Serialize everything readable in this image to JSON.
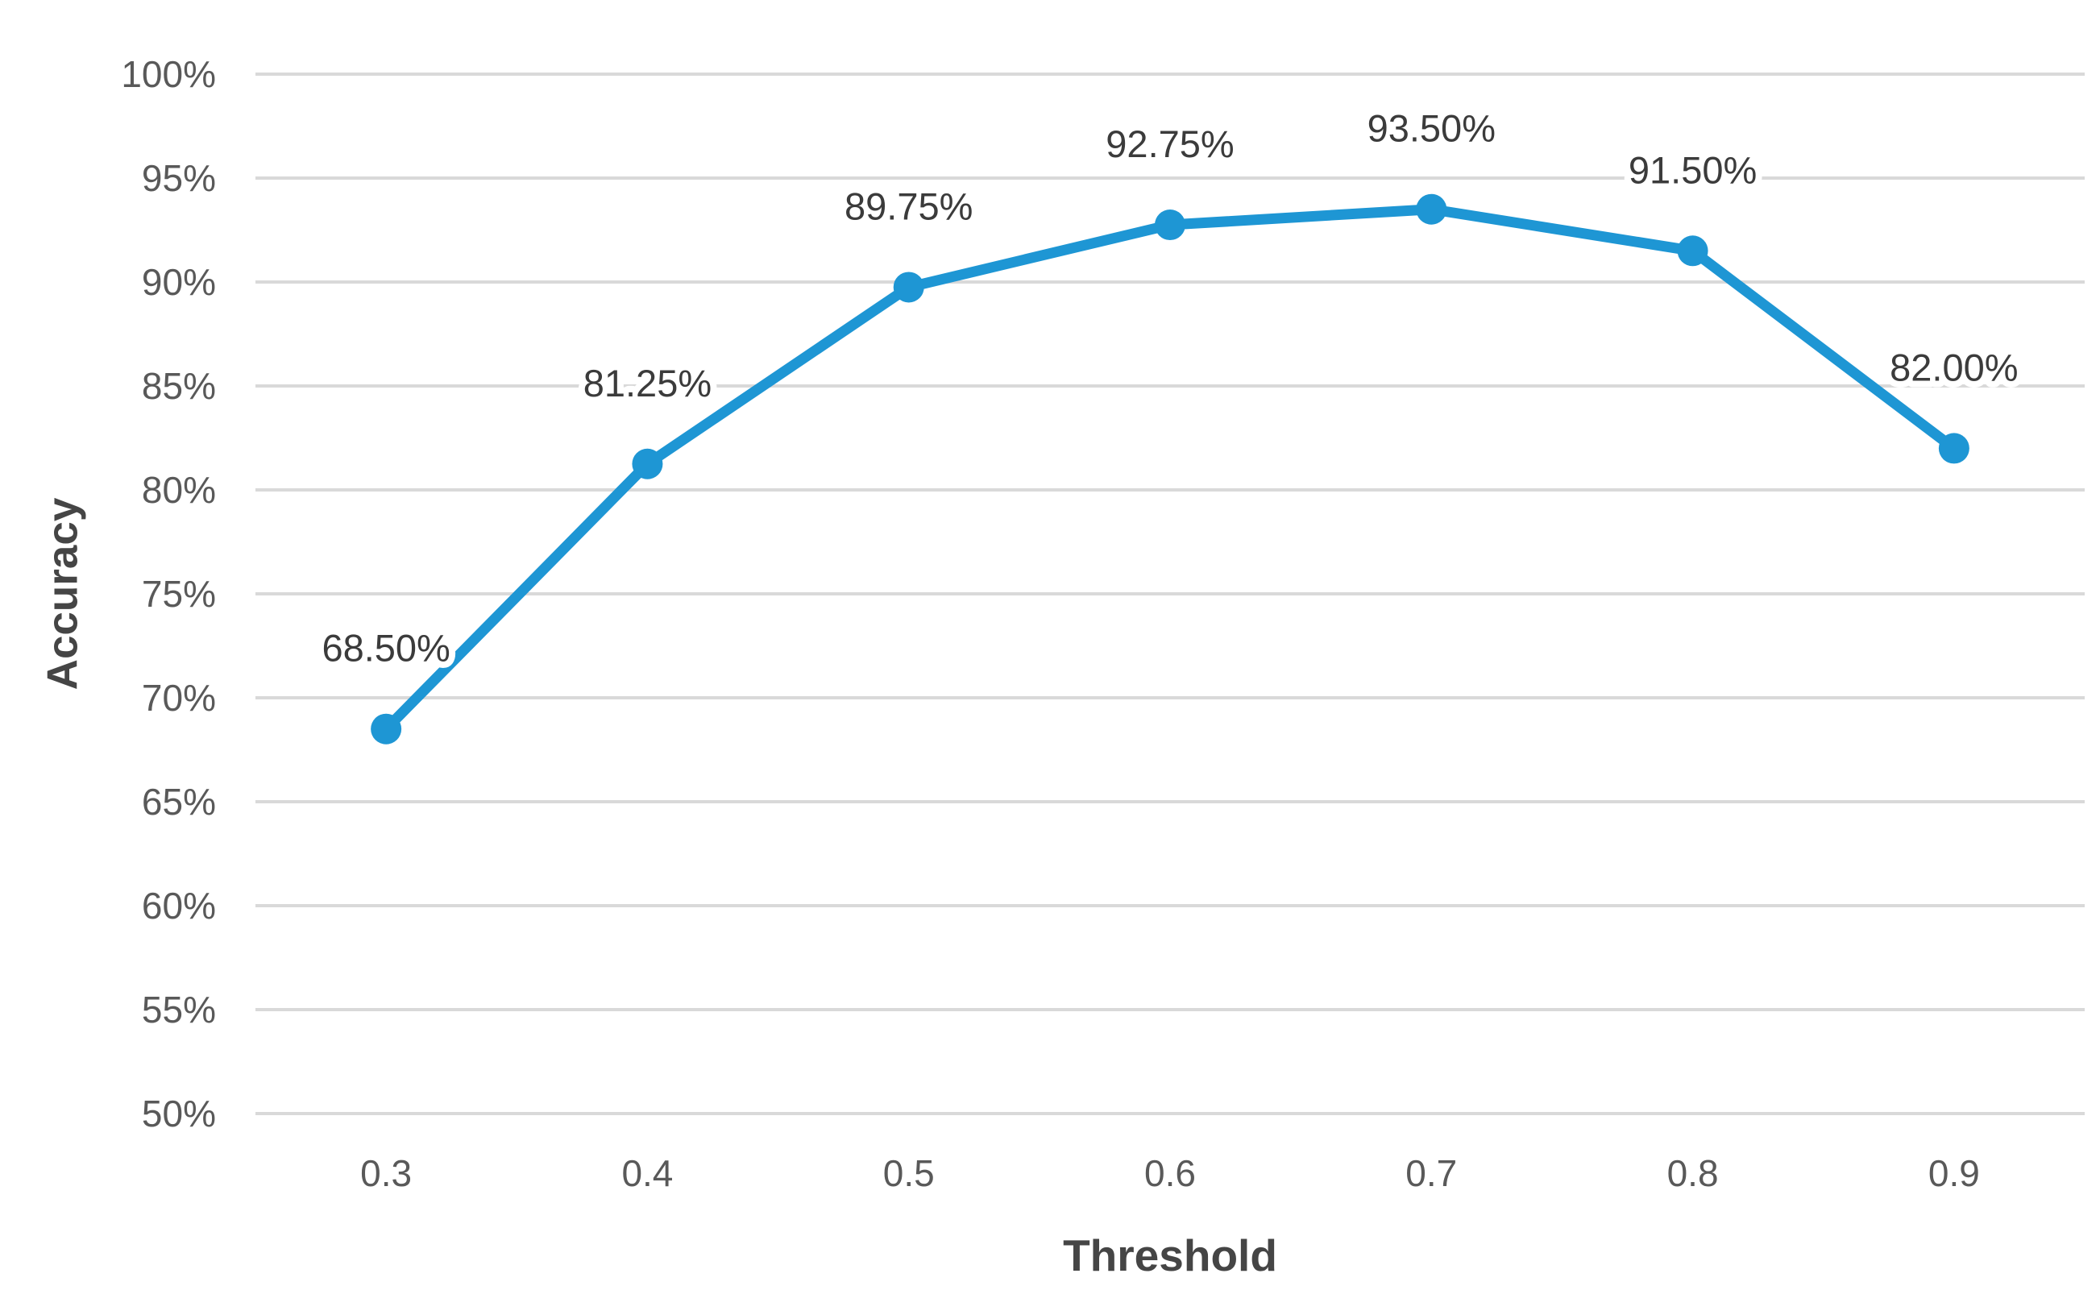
{
  "chart_data": {
    "type": "line",
    "categories": [
      "0.3",
      "0.4",
      "0.5",
      "0.6",
      "0.7",
      "0.8",
      "0.9"
    ],
    "series": [
      {
        "name": "Accuracy",
        "values": [
          68.5,
          81.25,
          89.75,
          92.75,
          93.5,
          91.5,
          82.0
        ]
      }
    ],
    "data_labels": [
      "68.50%",
      "81.25%",
      "89.75%",
      "92.75%",
      "93.50%",
      "91.50%",
      "82.00%"
    ],
    "title": "",
    "xlabel": "Threshold",
    "ylabel": "Accuracy",
    "ylim": [
      50,
      100
    ],
    "ytick_step": 5,
    "ytick_labels": [
      "50%",
      "55%",
      "60%",
      "65%",
      "70%",
      "75%",
      "80%",
      "85%",
      "90%",
      "95%",
      "100%"
    ],
    "grid": true,
    "legend": "none",
    "colors": {
      "line": "#1E96D4",
      "marker": "#1E96D4",
      "gridline": "#D9D9D9",
      "tick_label": "#595959",
      "data_label": "#3B3B3B",
      "axis_title": "#454545",
      "background": "#FFFFFF"
    }
  }
}
